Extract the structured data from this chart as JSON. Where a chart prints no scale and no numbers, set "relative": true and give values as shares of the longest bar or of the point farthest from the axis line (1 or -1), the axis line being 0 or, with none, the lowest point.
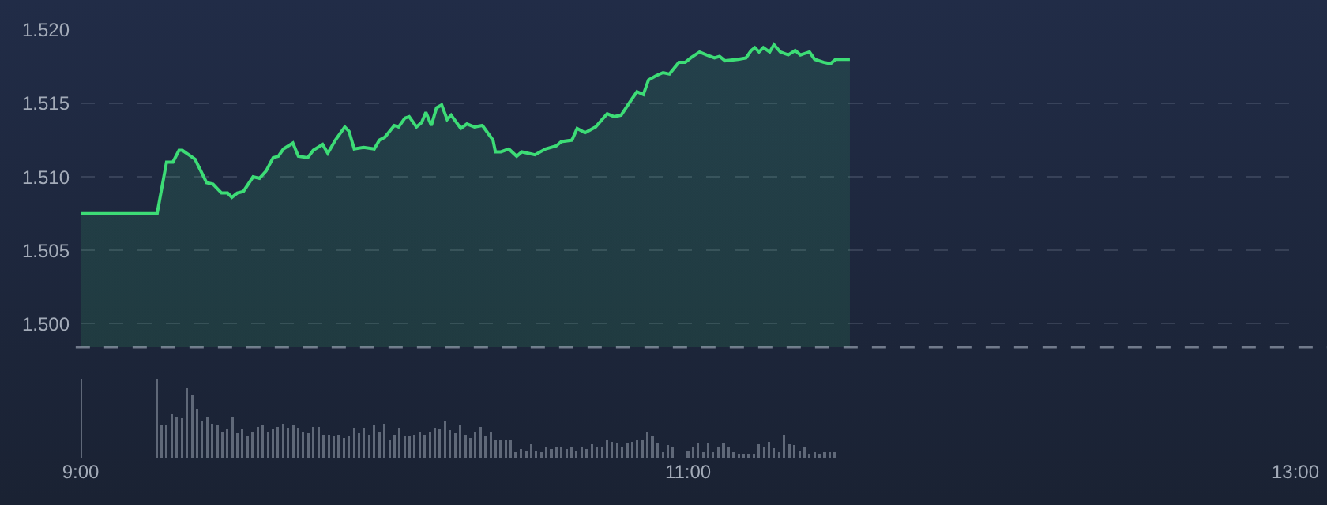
{
  "chart_data": [
    {
      "type": "area",
      "color": "#3ddc76",
      "grid": "y",
      "tick_labels": "y",
      "xlim": [
        9,
        13
      ],
      "ylim": [
        1.4984,
        1.52
      ],
      "yticks": [
        {
          "value": 1.5,
          "label": "1.500"
        },
        {
          "value": 1.505,
          "label": "1.505"
        },
        {
          "value": 1.51,
          "label": "1.510"
        },
        {
          "value": 1.515,
          "label": "1.515"
        },
        {
          "value": 1.52,
          "label": "1.520"
        }
      ],
      "x": [
        9.0,
        9.252,
        9.283,
        9.304,
        9.324,
        9.335,
        9.356,
        9.377,
        9.415,
        9.436,
        9.464,
        9.484,
        9.498,
        9.516,
        9.536,
        9.568,
        9.589,
        9.611,
        9.634,
        9.651,
        9.668,
        9.699,
        9.717,
        9.748,
        9.766,
        9.797,
        9.814,
        9.839,
        9.87,
        9.884,
        9.901,
        9.932,
        9.967,
        9.984,
        10.002,
        10.033,
        10.047,
        10.068,
        10.082,
        10.106,
        10.123,
        10.137,
        10.155,
        10.172,
        10.189,
        10.207,
        10.22,
        10.252,
        10.272,
        10.297,
        10.323,
        10.358,
        10.366,
        10.384,
        10.41,
        10.436,
        10.453,
        10.496,
        10.531,
        10.566,
        10.583,
        10.618,
        10.635,
        10.661,
        10.696,
        10.734,
        10.757,
        10.78,
        10.809,
        10.832,
        10.853,
        10.87,
        10.896,
        10.918,
        10.939,
        10.97,
        10.991,
        11.009,
        11.038,
        11.061,
        11.087,
        11.104,
        11.122,
        11.165,
        11.191,
        11.208,
        11.22,
        11.234,
        11.248,
        11.269,
        11.283,
        11.304,
        11.33,
        11.353,
        11.37,
        11.4,
        11.417,
        11.446,
        11.469,
        11.486,
        11.533
      ],
      "values": [
        1.5075,
        1.5075,
        1.511,
        1.511,
        1.5118,
        1.5118,
        1.5115,
        1.5112,
        1.5096,
        1.5095,
        1.5089,
        1.5089,
        1.5086,
        1.5089,
        1.509,
        1.51,
        1.5099,
        1.5104,
        1.5113,
        1.5114,
        1.5119,
        1.5123,
        1.5114,
        1.5113,
        1.5118,
        1.5122,
        1.5116,
        1.5125,
        1.5134,
        1.5131,
        1.5119,
        1.512,
        1.5119,
        1.5125,
        1.5127,
        1.5135,
        1.5134,
        1.514,
        1.5141,
        1.5134,
        1.5137,
        1.5144,
        1.5135,
        1.5147,
        1.5149,
        1.5139,
        1.5142,
        1.5133,
        1.5136,
        1.5134,
        1.5135,
        1.5125,
        1.5117,
        1.5117,
        1.5119,
        1.5114,
        1.5117,
        1.5115,
        1.5119,
        1.5121,
        1.5124,
        1.5125,
        1.5133,
        1.513,
        1.5134,
        1.5143,
        1.5141,
        1.5142,
        1.5151,
        1.5158,
        1.5156,
        1.5166,
        1.5169,
        1.5171,
        1.517,
        1.5178,
        1.5178,
        1.5181,
        1.5185,
        1.5183,
        1.5181,
        1.5182,
        1.5179,
        1.518,
        1.5181,
        1.5186,
        1.5188,
        1.5185,
        1.5188,
        1.5185,
        1.519,
        1.5185,
        1.5183,
        1.5186,
        1.5183,
        1.5185,
        1.518,
        1.5178,
        1.5177,
        1.518,
        1.518
      ]
    },
    {
      "type": "bar",
      "color": "#5f6878",
      "relative": true,
      "tick_labels": "x",
      "xlim": [
        9,
        13
      ],
      "xticks": [
        {
          "value": 9,
          "label": "9:00"
        },
        {
          "value": 11,
          "label": "11:00"
        },
        {
          "value": 13,
          "label": "13:00"
        }
      ],
      "x": [
        9,
        9.25,
        9.267,
        9.283,
        9.3,
        9.317,
        9.333,
        9.35,
        9.367,
        9.383,
        9.4,
        9.417,
        9.433,
        9.45,
        9.467,
        9.483,
        9.5,
        9.517,
        9.533,
        9.55,
        9.567,
        9.583,
        9.6,
        9.617,
        9.633,
        9.65,
        9.667,
        9.683,
        9.7,
        9.717,
        9.733,
        9.75,
        9.767,
        9.783,
        9.8,
        9.817,
        9.833,
        9.85,
        9.867,
        9.883,
        9.9,
        9.917,
        9.933,
        9.95,
        9.967,
        9.983,
        10,
        10.017,
        10.033,
        10.05,
        10.067,
        10.083,
        10.1,
        10.117,
        10.133,
        10.15,
        10.167,
        10.183,
        10.2,
        10.217,
        10.233,
        10.25,
        10.267,
        10.283,
        10.3,
        10.317,
        10.333,
        10.35,
        10.367,
        10.383,
        10.4,
        10.417,
        10.433,
        10.45,
        10.467,
        10.483,
        10.5,
        10.517,
        10.533,
        10.55,
        10.567,
        10.583,
        10.6,
        10.617,
        10.633,
        10.65,
        10.667,
        10.683,
        10.7,
        10.717,
        10.733,
        10.75,
        10.767,
        10.783,
        10.8,
        10.817,
        10.833,
        10.85,
        10.867,
        10.883,
        10.9,
        10.917,
        10.933,
        10.95,
        11,
        11.017,
        11.033,
        11.05,
        11.067,
        11.083,
        11.1,
        11.117,
        11.133,
        11.15,
        11.167,
        11.183,
        11.2,
        11.217,
        11.233,
        11.25,
        11.267,
        11.283,
        11.3,
        11.317,
        11.333,
        11.35,
        11.367,
        11.383,
        11.4,
        11.417,
        11.433,
        11.45,
        11.467,
        11.483
      ],
      "values": [
        1.0,
        1.0,
        0.41,
        0.41,
        0.55,
        0.51,
        0.5,
        0.88,
        0.79,
        0.62,
        0.47,
        0.51,
        0.43,
        0.41,
        0.33,
        0.36,
        0.51,
        0.31,
        0.36,
        0.27,
        0.33,
        0.39,
        0.41,
        0.33,
        0.36,
        0.39,
        0.43,
        0.38,
        0.42,
        0.38,
        0.33,
        0.31,
        0.39,
        0.39,
        0.29,
        0.29,
        0.28,
        0.29,
        0.25,
        0.27,
        0.37,
        0.31,
        0.37,
        0.29,
        0.41,
        0.33,
        0.43,
        0.23,
        0.29,
        0.37,
        0.27,
        0.28,
        0.29,
        0.32,
        0.29,
        0.33,
        0.38,
        0.36,
        0.47,
        0.35,
        0.31,
        0.41,
        0.29,
        0.25,
        0.33,
        0.39,
        0.28,
        0.33,
        0.22,
        0.23,
        0.23,
        0.23,
        0.07,
        0.11,
        0.09,
        0.17,
        0.09,
        0.07,
        0.14,
        0.11,
        0.14,
        0.14,
        0.11,
        0.14,
        0.09,
        0.14,
        0.11,
        0.17,
        0.14,
        0.14,
        0.22,
        0.2,
        0.18,
        0.14,
        0.18,
        0.2,
        0.23,
        0.22,
        0.33,
        0.28,
        0.18,
        0.07,
        0.16,
        0.14,
        0.09,
        0.14,
        0.18,
        0.07,
        0.18,
        0.07,
        0.14,
        0.18,
        0.13,
        0.07,
        0.04,
        0.05,
        0.05,
        0.05,
        0.17,
        0.14,
        0.2,
        0.12,
        0.07,
        0.29,
        0.17,
        0.16,
        0.09,
        0.14,
        0.05,
        0.07,
        0.05,
        0.07,
        0.07,
        0.07
      ]
    }
  ]
}
